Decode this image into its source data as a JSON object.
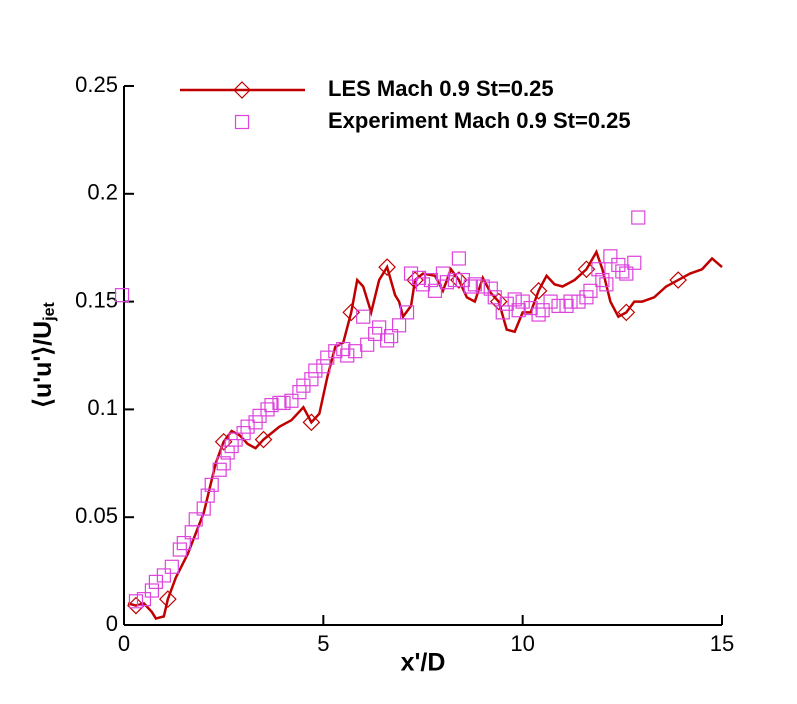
{
  "chart_data": {
    "type": "line",
    "xlabel": "x'/D",
    "ylabel": "⟨u'u'⟩/U",
    "ylabel_sub": "jet",
    "xlim": [
      0,
      15
    ],
    "xticks": [
      0,
      5,
      10,
      15
    ],
    "ylim": [
      0,
      0.25
    ],
    "yticks": [
      0,
      0.05,
      0.1,
      0.15,
      0.2,
      0.25
    ],
    "legend": "top",
    "series": [
      {
        "name": "LES Mach 0.9 St=0.25",
        "color": "#c00000",
        "style": "line",
        "marker": "diamond",
        "x": [
          0.1,
          0.3,
          0.5,
          0.7,
          0.8,
          1.0,
          1.1,
          1.3,
          1.6,
          2.0,
          2.3,
          2.5,
          2.7,
          2.9,
          3.1,
          3.3,
          3.5,
          3.7,
          3.9,
          4.2,
          4.5,
          4.7,
          4.9,
          5.1,
          5.3,
          5.5,
          5.7,
          5.85,
          6.0,
          6.2,
          6.4,
          6.6,
          6.8,
          6.9,
          7.0,
          7.2,
          7.3,
          7.5,
          7.8,
          8.0,
          8.2,
          8.4,
          8.6,
          8.8,
          9.0,
          9.2,
          9.4,
          9.6,
          9.8,
          10.0,
          10.2,
          10.4,
          10.6,
          10.8,
          11.0,
          11.3,
          11.6,
          11.85,
          12.0,
          12.2,
          12.4,
          12.6,
          12.8,
          13.0,
          13.3,
          13.6,
          13.9,
          14.2,
          14.5,
          14.75,
          15.0
        ],
        "values": [
          0.01,
          0.009,
          0.01,
          0.006,
          0.003,
          0.004,
          0.012,
          0.022,
          0.033,
          0.052,
          0.075,
          0.085,
          0.09,
          0.088,
          0.084,
          0.082,
          0.086,
          0.089,
          0.092,
          0.095,
          0.101,
          0.094,
          0.098,
          0.115,
          0.129,
          0.131,
          0.145,
          0.16,
          0.157,
          0.145,
          0.16,
          0.166,
          0.153,
          0.15,
          0.143,
          0.148,
          0.16,
          0.163,
          0.162,
          0.155,
          0.165,
          0.16,
          0.152,
          0.15,
          0.161,
          0.154,
          0.15,
          0.137,
          0.136,
          0.145,
          0.145,
          0.155,
          0.162,
          0.158,
          0.157,
          0.16,
          0.165,
          0.173,
          0.165,
          0.15,
          0.143,
          0.145,
          0.15,
          0.15,
          0.152,
          0.157,
          0.16,
          0.163,
          0.165,
          0.17,
          0.166
        ]
      },
      {
        "name": "Experiment Mach 0.9 St=0.25",
        "color": "#dd44dd",
        "style": "marker",
        "marker": "square",
        "x": [
          -0.05,
          0.3,
          0.5,
          0.7,
          0.8,
          1.0,
          1.2,
          1.4,
          1.5,
          1.7,
          1.8,
          2.0,
          2.1,
          2.2,
          2.4,
          2.5,
          2.6,
          2.7,
          2.8,
          3.0,
          3.1,
          3.3,
          3.4,
          3.6,
          3.7,
          3.9,
          4.0,
          4.2,
          4.4,
          4.5,
          4.7,
          4.8,
          5.0,
          5.1,
          5.3,
          5.5,
          5.6,
          5.8,
          6.0,
          6.1,
          6.3,
          6.4,
          6.6,
          6.7,
          6.9,
          7.1,
          7.2,
          7.4,
          7.5,
          7.7,
          7.8,
          8.0,
          8.1,
          8.3,
          8.4,
          8.5,
          8.7,
          8.8,
          9.0,
          9.2,
          9.3,
          9.5,
          9.6,
          9.8,
          9.9,
          10.0,
          10.2,
          10.4,
          10.5,
          10.7,
          10.9,
          11.1,
          11.2,
          11.4,
          11.6,
          11.7,
          11.9,
          12.0,
          12.1,
          12.2,
          12.4,
          12.5,
          12.6,
          12.8,
          12.9
        ],
        "values": [
          0.153,
          0.011,
          0.012,
          0.016,
          0.02,
          0.023,
          0.027,
          0.035,
          0.038,
          0.043,
          0.049,
          0.054,
          0.06,
          0.065,
          0.072,
          0.075,
          0.08,
          0.083,
          0.086,
          0.089,
          0.092,
          0.094,
          0.097,
          0.1,
          0.102,
          0.103,
          0.103,
          0.104,
          0.108,
          0.111,
          0.114,
          0.118,
          0.12,
          0.124,
          0.127,
          0.128,
          0.125,
          0.127,
          0.143,
          0.13,
          0.135,
          0.138,
          0.132,
          0.134,
          0.139,
          0.145,
          0.163,
          0.161,
          0.158,
          0.16,
          0.155,
          0.163,
          0.159,
          0.16,
          0.17,
          0.16,
          0.157,
          0.158,
          0.157,
          0.156,
          0.152,
          0.145,
          0.149,
          0.151,
          0.146,
          0.15,
          0.147,
          0.144,
          0.146,
          0.15,
          0.148,
          0.148,
          0.15,
          0.15,
          0.152,
          0.155,
          0.165,
          0.16,
          0.158,
          0.171,
          0.167,
          0.164,
          0.163,
          0.168,
          0.189
        ]
      }
    ]
  }
}
